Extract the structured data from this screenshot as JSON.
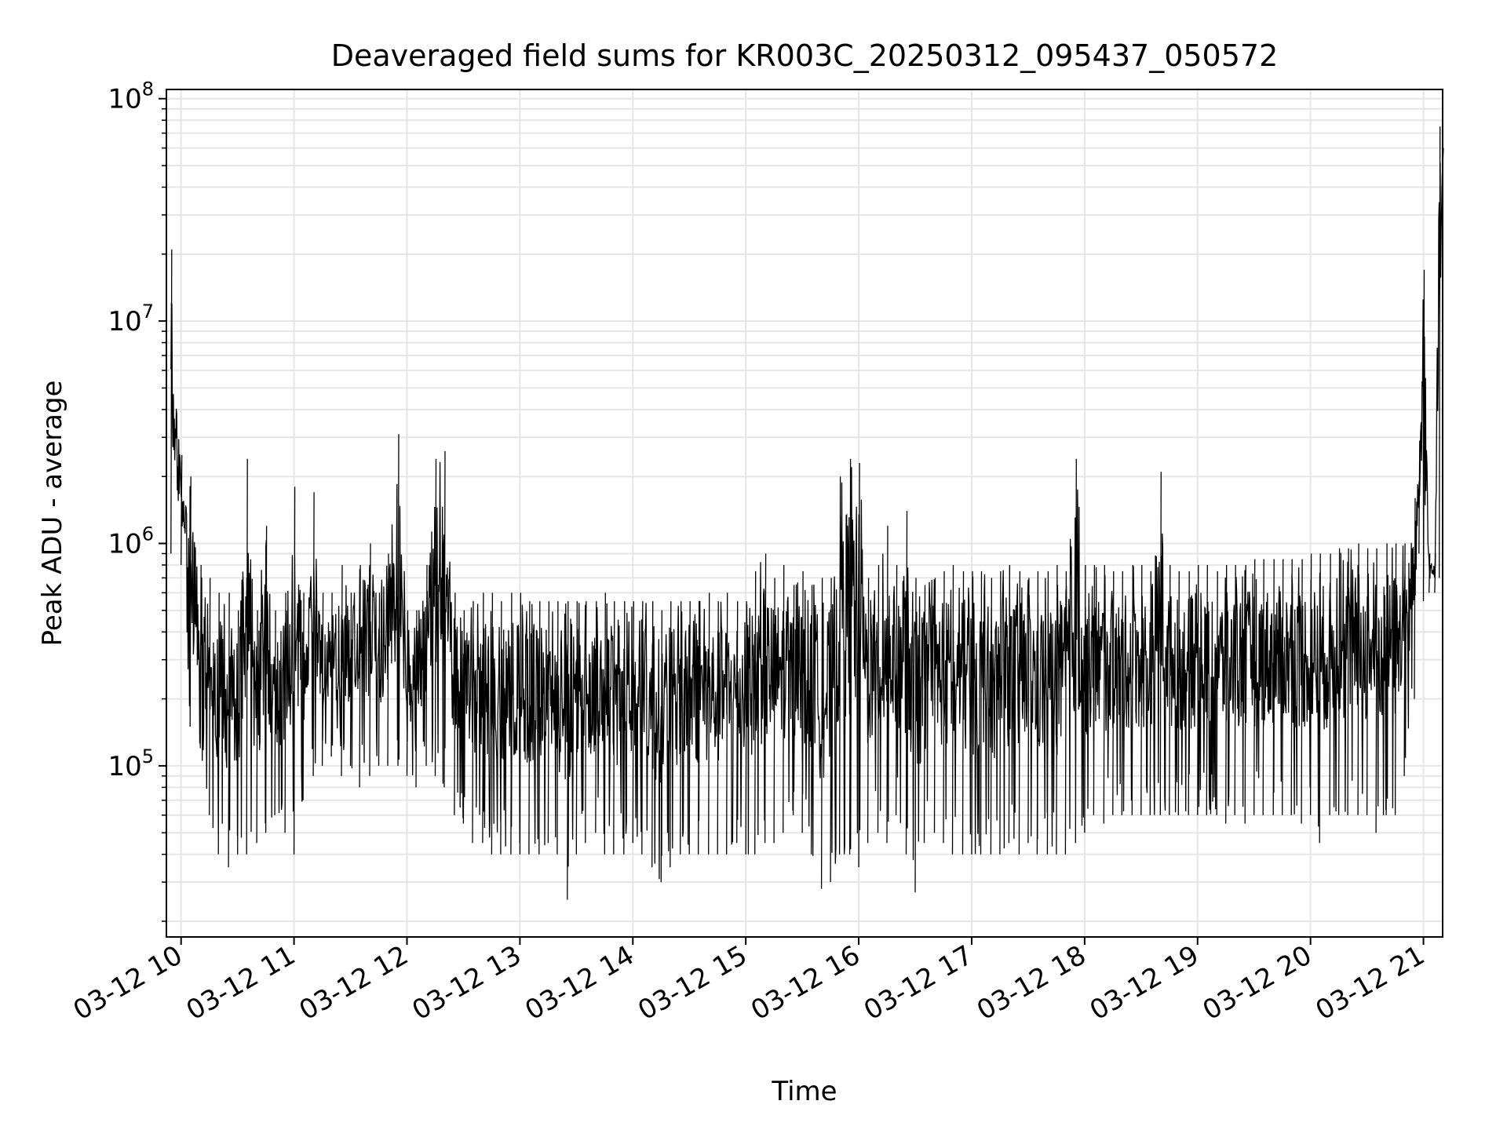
{
  "chart_data": {
    "type": "line",
    "title": "Deaveraged field sums for KR003C_20250312_095437_050572",
    "xlabel": "Time",
    "ylabel": "Peak ADU - average",
    "yscale": "log",
    "grid": true,
    "grid_minor": true,
    "x_tick_labels": [
      "03-12 10",
      "03-12 11",
      "03-12 12",
      "03-12 13",
      "03-12 14",
      "03-12 15",
      "03-12 16",
      "03-12 17",
      "03-12 18",
      "03-12 19",
      "03-12 20",
      "03-12 21"
    ],
    "x_tick_hours": [
      10,
      11,
      12,
      13,
      14,
      15,
      16,
      17,
      18,
      19,
      20,
      21
    ],
    "xlim_hours": [
      9.87,
      21.17
    ],
    "y_tick_exponents": [
      5,
      6,
      7,
      8
    ],
    "y_tick_base": "10",
    "ylim": [
      17000,
      110000000
    ],
    "series_color": "#000000",
    "series": [
      {
        "x_hours": [
          9.91,
          10.0,
          10.08,
          10.17,
          10.25,
          10.33,
          10.42,
          10.5,
          10.58,
          10.67,
          10.75,
          10.83,
          10.92,
          11.0,
          11.08,
          11.17,
          11.25,
          11.33,
          11.42,
          11.5,
          11.58,
          11.67,
          11.75,
          11.83,
          11.92,
          12.0,
          12.08,
          12.17,
          12.25,
          12.33,
          12.42,
          12.5,
          12.58,
          12.67,
          12.75,
          12.83,
          12.92,
          13.0,
          13.08,
          13.17,
          13.25,
          13.33,
          13.42,
          13.5,
          13.58,
          13.67,
          13.75,
          13.83,
          13.92,
          14.0,
          14.08,
          14.17,
          14.25,
          14.33,
          14.42,
          14.5,
          14.58,
          14.67,
          14.75,
          14.83,
          14.92,
          15.0,
          15.08,
          15.17,
          15.25,
          15.33,
          15.42,
          15.5,
          15.58,
          15.67,
          15.75,
          15.83,
          15.92,
          16.0,
          16.08,
          16.17,
          16.25,
          16.33,
          16.42,
          16.5,
          16.58,
          16.67,
          16.75,
          16.83,
          16.92,
          17.0,
          17.08,
          17.17,
          17.25,
          17.33,
          17.42,
          17.5,
          17.58,
          17.67,
          17.75,
          17.83,
          17.92,
          18.0,
          18.08,
          18.17,
          18.25,
          18.33,
          18.42,
          18.5,
          18.58,
          18.67,
          18.75,
          18.83,
          18.92,
          19.0,
          19.08,
          19.17,
          19.25,
          19.33,
          19.42,
          19.5,
          19.58,
          19.67,
          19.75,
          19.83,
          19.92,
          20.0,
          20.08,
          20.17,
          20.25,
          20.33,
          20.42,
          20.5,
          20.58,
          20.67,
          20.75,
          20.83,
          20.92,
          20.96,
          21.0,
          21.05,
          21.1,
          21.14,
          21.17
        ],
        "y_high": [
          21000000,
          2500000,
          2000000,
          800000,
          700000,
          600000,
          600000,
          500000,
          2400000,
          500000,
          1200000,
          500000,
          600000,
          1800000,
          600000,
          1700000,
          600000,
          600000,
          800000,
          600000,
          800000,
          1000000,
          600000,
          900000,
          3100000,
          500000,
          500000,
          800000,
          2400000,
          2600000,
          600000,
          500000,
          550000,
          600000,
          600000,
          550000,
          600000,
          600000,
          550000,
          550000,
          550000,
          550000,
          550000,
          550000,
          550000,
          550000,
          600000,
          550000,
          550000,
          550000,
          550000,
          550000,
          500000,
          550000,
          550000,
          550000,
          550000,
          600000,
          550000,
          600000,
          550000,
          550000,
          750000,
          900000,
          700000,
          800000,
          650000,
          750000,
          650000,
          700000,
          700000,
          2000000,
          2400000,
          2300000,
          700000,
          800000,
          1200000,
          800000,
          1400000,
          700000,
          650000,
          700000,
          750000,
          800000,
          750000,
          750000,
          750000,
          700000,
          750000,
          800000,
          750000,
          700000,
          750000,
          750000,
          800000,
          750000,
          2400000,
          800000,
          800000,
          800000,
          750000,
          750000,
          800000,
          800000,
          750000,
          2100000,
          800000,
          750000,
          750000,
          800000,
          800000,
          750000,
          800000,
          800000,
          800000,
          850000,
          850000,
          850000,
          850000,
          850000,
          850000,
          900000,
          900000,
          900000,
          950000,
          950000,
          1000000,
          950000,
          950000,
          1000000,
          1000000,
          1000000,
          1600000,
          2900000,
          17000000,
          900000,
          900000,
          75000000,
          60000000
        ],
        "y_low": [
          900000,
          800000,
          150000,
          120000,
          60000,
          40000,
          35000,
          40000,
          40000,
          45000,
          50000,
          60000,
          50000,
          40000,
          70000,
          90000,
          100000,
          110000,
          90000,
          100000,
          80000,
          90000,
          100000,
          100000,
          100000,
          90000,
          80000,
          100000,
          90000,
          80000,
          60000,
          55000,
          45000,
          45000,
          40000,
          40000,
          40000,
          40000,
          40000,
          40000,
          45000,
          40000,
          25000,
          40000,
          45000,
          50000,
          40000,
          40000,
          40000,
          45000,
          40000,
          35000,
          30000,
          35000,
          40000,
          40000,
          40000,
          40000,
          40000,
          40000,
          45000,
          40000,
          40000,
          45000,
          45000,
          50000,
          60000,
          50000,
          40000,
          28000,
          30000,
          40000,
          40000,
          35000,
          45000,
          50000,
          45000,
          60000,
          40000,
          27000,
          45000,
          50000,
          45000,
          40000,
          40000,
          40000,
          40000,
          40000,
          40000,
          45000,
          40000,
          45000,
          40000,
          40000,
          40000,
          40000,
          45000,
          50000,
          60000,
          55000,
          60000,
          60000,
          60000,
          60000,
          60000,
          60000,
          60000,
          60000,
          60000,
          60000,
          60000,
          60000,
          55000,
          60000,
          55000,
          60000,
          60000,
          60000,
          60000,
          60000,
          55000,
          60000,
          45000,
          60000,
          60000,
          60000,
          60000,
          60000,
          50000,
          60000,
          60000,
          90000,
          200000,
          900000,
          550000,
          600000,
          600000,
          700000,
          50000000
        ]
      }
    ]
  }
}
